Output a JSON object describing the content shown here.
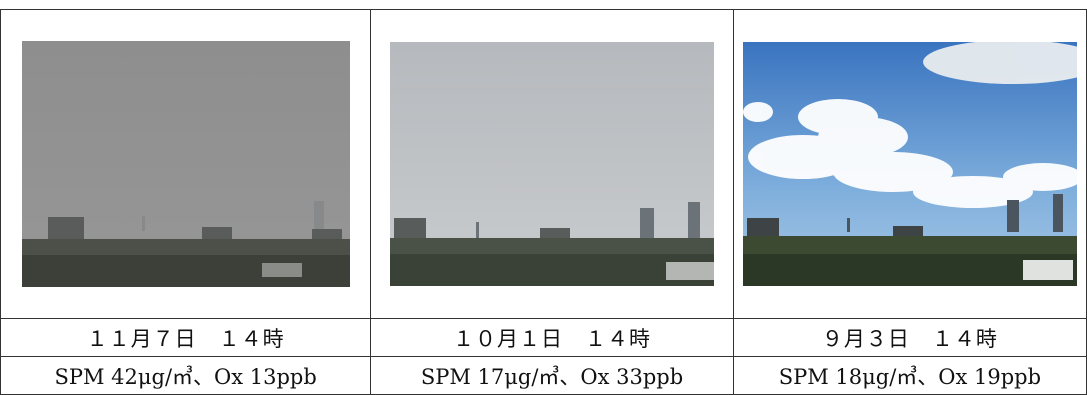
{
  "photos": [
    {
      "date": "１１月７日　１４時",
      "values": "SPM 42μg/㎥、Ox 13ppb",
      "sky_color_top": "#8f8f8f",
      "sky_color_bottom": "#969696",
      "haze": "heavy"
    },
    {
      "date": "１０月１日　１４時",
      "values": "SPM 17μg/㎥、Ox 33ppb",
      "sky_color_top": "#b9bcc0",
      "sky_color_bottom": "#c6c9cc",
      "haze": "light"
    },
    {
      "date": "９月３日　１４時",
      "values": "SPM 18μg/㎥、Ox 19ppb",
      "sky_color_top": "#3e79c4",
      "sky_color_bottom": "#8fb8e0",
      "haze": "clear"
    }
  ]
}
